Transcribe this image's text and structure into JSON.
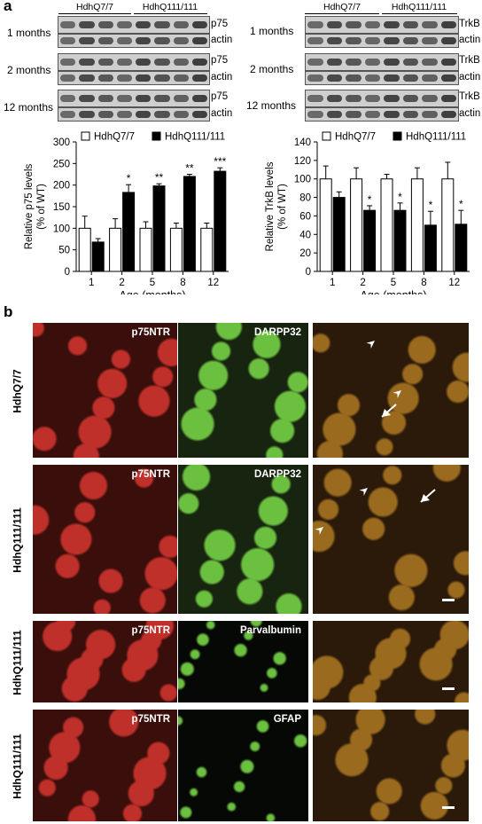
{
  "panel_a_label": "a",
  "panel_b_label": "b",
  "western": {
    "left": {
      "group1": "HdhQ7/7",
      "group2": "HdhQ111/111",
      "rows": [
        {
          "age": "1 months",
          "protein": "p75",
          "loading": "actin"
        },
        {
          "age": "2 months",
          "protein": "p75",
          "loading": "actin"
        },
        {
          "age": "12 months",
          "protein": "p75",
          "loading": "actin"
        }
      ]
    },
    "right": {
      "group1": "HdhQ7/7",
      "group2": "HdhQ111/111",
      "rows": [
        {
          "age": "1 months",
          "protein": "TrkB",
          "loading": "actin"
        },
        {
          "age": "2 months",
          "protein": "TrkB",
          "loading": "actin"
        },
        {
          "age": "12 months",
          "protein": "TrkB",
          "loading": "actin"
        }
      ]
    }
  },
  "chart_data": [
    {
      "type": "bar",
      "legend": [
        "HdhQ7/7",
        "HdhQ111/111"
      ],
      "xlabel": "Age (months)",
      "ylabel": "Relative p75 levels (% of WT)",
      "ylabel_lines": [
        "Relative p75 levels",
        "(% of WT)"
      ],
      "ylim": [
        0,
        300
      ],
      "yticks": [
        0,
        50,
        100,
        150,
        200,
        250,
        300
      ],
      "categories": [
        "1",
        "2",
        "5",
        "8",
        "12"
      ],
      "series": [
        {
          "name": "HdhQ7/7",
          "color": "#ffffff",
          "values": [
            100,
            100,
            100,
            100,
            100
          ],
          "errors": [
            28,
            22,
            15,
            12,
            12
          ]
        },
        {
          "name": "HdhQ111/111",
          "color": "#000000",
          "values": [
            68,
            183,
            198,
            220,
            232
          ],
          "errors": [
            8,
            18,
            5,
            5,
            8
          ]
        }
      ],
      "significance": [
        "",
        "*",
        "**",
        "**",
        "***"
      ]
    },
    {
      "type": "bar",
      "legend": [
        "HdhQ7/7",
        "HdhQ111/111"
      ],
      "xlabel": "Age (months)",
      "ylabel": "Relative TrkB levels (% of WT)",
      "ylabel_lines": [
        "Relative TrkB levels",
        "(% of WT)"
      ],
      "ylim": [
        0,
        140
      ],
      "yticks": [
        0,
        20,
        40,
        60,
        80,
        100,
        120,
        140
      ],
      "categories": [
        "1",
        "2",
        "5",
        "8",
        "12"
      ],
      "series": [
        {
          "name": "HdhQ7/7",
          "color": "#ffffff",
          "values": [
            100,
            100,
            100,
            100,
            100
          ],
          "errors": [
            14,
            12,
            5,
            12,
            18
          ]
        },
        {
          "name": "HdhQ111/111",
          "color": "#000000",
          "values": [
            80,
            66,
            66,
            50,
            51
          ],
          "errors": [
            6,
            5,
            8,
            15,
            15
          ]
        }
      ],
      "significance": [
        "",
        "*",
        "*",
        "*",
        "*"
      ]
    }
  ],
  "micrographs": {
    "rows": [
      {
        "genotype": "HdhQ7/7",
        "panels": [
          "p75NTR",
          "DARPP32",
          ""
        ]
      },
      {
        "genotype": "HdhQ111/111",
        "panels": [
          "p75NTR",
          "DARPP32",
          ""
        ]
      },
      {
        "genotype": "HdhQ111/111",
        "panels": [
          "p75NTR",
          "Parvalbumin",
          ""
        ]
      },
      {
        "genotype": "HdhQ111/111",
        "panels": [
          "p75NTR",
          "GFAP",
          ""
        ]
      }
    ],
    "colors": {
      "red": "#c0302a",
      "green": "#6cc040",
      "merge": "#9a6a1e"
    }
  }
}
